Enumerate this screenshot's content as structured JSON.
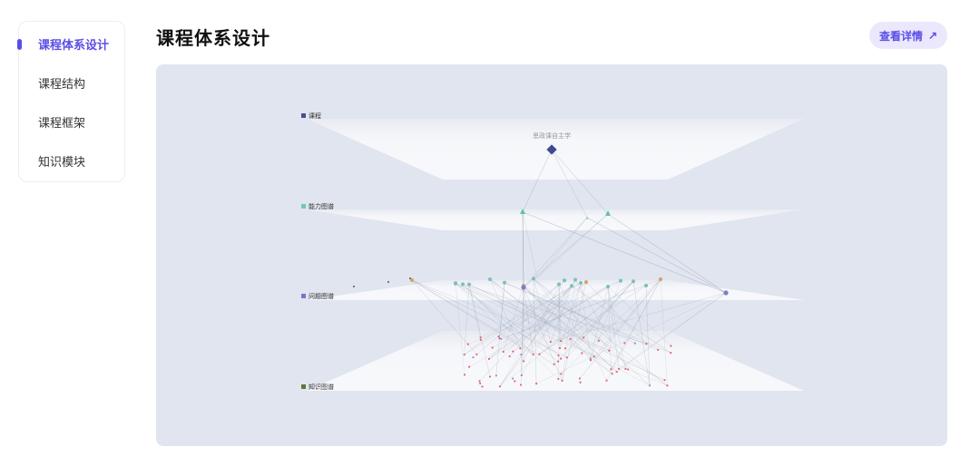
{
  "sidebar": {
    "items": [
      {
        "label": "课程体系设计",
        "active": true
      },
      {
        "label": "课程结构",
        "active": false
      },
      {
        "label": "课程框架",
        "active": false
      },
      {
        "label": "知识模块",
        "active": false
      }
    ]
  },
  "header": {
    "title": "课程体系设计",
    "detail_button": "查看详情",
    "detail_icon": "arrow-up-right-icon"
  },
  "graph": {
    "layers": [
      {
        "name": "课程",
        "color": "#4a4f94"
      },
      {
        "name": "能力图谱",
        "color": "#6fcab5"
      },
      {
        "name": "问题图谱",
        "color": "#7d72c9"
      },
      {
        "name": "知识图谱",
        "color": "#5a7a3a"
      }
    ],
    "root_node_label": "思政课自主学",
    "colors": {
      "course": "#3f4a93",
      "ability": "#5fc3a3",
      "problem": "#8379cc",
      "problem_alt": "#d9a25b",
      "problem_teal": "#7bbfc0",
      "knowledge": "#d96a72",
      "knowledge_alt": "#9a8fd6"
    }
  }
}
